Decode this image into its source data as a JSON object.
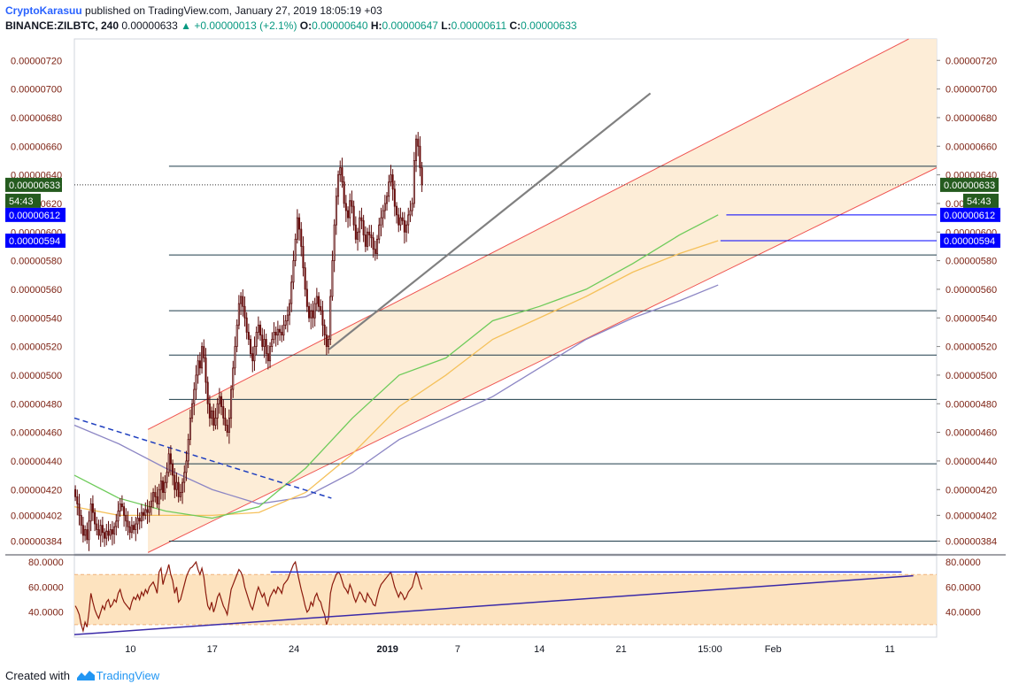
{
  "header": {
    "author": "CryptoKarasuu",
    "published": "published on TradingView.com, January 27, 2019 18:05:19 +03",
    "symbol": "BINANCE:ZILBTC, 240",
    "last": "0.00000633",
    "change": "+0.00000013 (+2.1%)",
    "o_label": "O:",
    "o": "0.00000640",
    "h_label": "H:",
    "h": "0.00000647",
    "l_label": "L:",
    "l": "0.00000611",
    "c_label": "C:",
    "c": "0.00000633"
  },
  "footer": {
    "created": "Created with",
    "brand": "TradingView"
  },
  "colors": {
    "up": "#26a69a",
    "down": "#8b0d0d",
    "channel_fill": "#fdebd3",
    "channel_line": "#ef5350",
    "ma_fast": "#6ecb5a",
    "ma_mid": "#f5c15b",
    "ma_slow": "#8c86c4",
    "hline": "#1d3b4a",
    "rsi_line": "#8b1a0d",
    "rsi_band": "#fde3bf",
    "blue_label": "#0000ff",
    "green_label": "#255b1f"
  },
  "chart_data": {
    "type": "candlestick",
    "price_range": [
      3.75e-06,
      7.35e-06
    ],
    "price_ticks": [
      "0.00000720",
      "0.00000700",
      "0.00000680",
      "0.00000660",
      "0.00000640",
      "0.00000620",
      "0.00000600",
      "0.00000580",
      "0.00000560",
      "0.00000540",
      "0.00000520",
      "0.00000500",
      "0.00000480",
      "0.00000460",
      "0.00000440",
      "0.00000420",
      "0.00000402",
      "0.00000384"
    ],
    "x_ticks": [
      {
        "label": "10",
        "day": 10
      },
      {
        "label": "17",
        "day": 17
      },
      {
        "label": "24",
        "day": 24
      },
      {
        "label": "2019",
        "day": 32,
        "bold": true
      },
      {
        "label": "7",
        "day": 38
      },
      {
        "label": "14",
        "day": 45
      },
      {
        "label": "21",
        "day": 52
      },
      {
        "label": "15:00",
        "day": 59.6
      },
      {
        "label": "Feb",
        "day": 65
      },
      {
        "label": "11",
        "day": 75
      }
    ],
    "x_range": [
      5.2,
      79
    ],
    "candles_per_day": 6,
    "start_day": 5.2,
    "closes": [
      415,
      410,
      402,
      395,
      388,
      392,
      385,
      398,
      410,
      404,
      396,
      392,
      388,
      395,
      390,
      386,
      391,
      388,
      392,
      389,
      394,
      398,
      405,
      410,
      408,
      402,
      398,
      394,
      390,
      395,
      392,
      396,
      400,
      398,
      404,
      402,
      406,
      404,
      408,
      412,
      418,
      415,
      410,
      420,
      426,
      418,
      425,
      432,
      445,
      438,
      430,
      420,
      425,
      415,
      418,
      425,
      432,
      440,
      455,
      470,
      480,
      490,
      500,
      510,
      505,
      520,
      512,
      495,
      480,
      470,
      475,
      465,
      470,
      480,
      485,
      478,
      470,
      465,
      460,
      470,
      490,
      505,
      520,
      535,
      550,
      555,
      548,
      540,
      530,
      525,
      515,
      510,
      520,
      530,
      535,
      528,
      520,
      525,
      515,
      510,
      520,
      525,
      530,
      528,
      532,
      530,
      528,
      535,
      538,
      542,
      550,
      565,
      580,
      595,
      610,
      602,
      590,
      575,
      560,
      548,
      540,
      545,
      540,
      550,
      555,
      548,
      545,
      535,
      528,
      520,
      525,
      555,
      580,
      605,
      625,
      640,
      645,
      635,
      620,
      615,
      610,
      622,
      618,
      605,
      595,
      600,
      610,
      608,
      598,
      590,
      600,
      598,
      596,
      588,
      585,
      595,
      605,
      610,
      615,
      620,
      625,
      635,
      640,
      630,
      618,
      612,
      605,
      610,
      608,
      600,
      605,
      612,
      615,
      620,
      650,
      665,
      660,
      645,
      633
    ],
    "open_first": 420,
    "horizontal_levels": [
      646,
      584,
      545,
      514,
      483,
      438,
      384
    ],
    "current_price": "0.00000633",
    "countdown": "54:43",
    "blue_levels": [
      {
        "price": 612,
        "label": "0.00000612"
      },
      {
        "price": 594,
        "label": "0.00000594"
      }
    ],
    "channel": {
      "lower_start": [
        11.5,
        376
      ],
      "lower_end": [
        79,
        645
      ],
      "upper_start": [
        11.5,
        462
      ],
      "upper_end": [
        79,
        745
      ],
      "fill_end_day": 79
    },
    "trend_lines": [
      {
        "name": "upper-wedge-line",
        "from": [
          27,
          518
        ],
        "to": [
          54.5,
          697
        ]
      },
      {
        "name": "descending-dashed-line",
        "from": [
          5.2,
          470
        ],
        "to": [
          27.2,
          414
        ]
      }
    ],
    "moving_averages": {
      "fast": [
        [
          5.2,
          430
        ],
        [
          9,
          414
        ],
        [
          13,
          405
        ],
        [
          17,
          400
        ],
        [
          21,
          408
        ],
        [
          25,
          435
        ],
        [
          29,
          470
        ],
        [
          33,
          500
        ],
        [
          37,
          512
        ],
        [
          41,
          538
        ],
        [
          45,
          548
        ],
        [
          49,
          560
        ],
        [
          53,
          578
        ],
        [
          57,
          598
        ],
        [
          60.3,
          612
        ]
      ],
      "mid": [
        [
          5.2,
          408
        ],
        [
          9,
          402
        ],
        [
          13,
          402
        ],
        [
          17,
          402
        ],
        [
          21,
          404
        ],
        [
          25,
          418
        ],
        [
          29,
          445
        ],
        [
          33,
          478
        ],
        [
          37,
          500
        ],
        [
          41,
          525
        ],
        [
          45,
          540
        ],
        [
          49,
          555
        ],
        [
          53,
          572
        ],
        [
          57,
          585
        ],
        [
          60.3,
          594
        ]
      ],
      "slow": [
        [
          5.2,
          465
        ],
        [
          9,
          452
        ],
        [
          13,
          435
        ],
        [
          17,
          420
        ],
        [
          21,
          410
        ],
        [
          25,
          415
        ],
        [
          29,
          432
        ],
        [
          33,
          455
        ],
        [
          37,
          470
        ],
        [
          41,
          485
        ],
        [
          45,
          505
        ],
        [
          49,
          525
        ],
        [
          53,
          540
        ],
        [
          57,
          552
        ],
        [
          60.3,
          563
        ]
      ]
    },
    "rsi": {
      "range": [
        20,
        85
      ],
      "ticks": [
        "80.0000",
        "60.0000",
        "40.0000"
      ],
      "tick_values": [
        80,
        60,
        40
      ],
      "band": [
        30,
        70
      ],
      "values": [
        45,
        42,
        38,
        30,
        25,
        32,
        28,
        40,
        55,
        48,
        42,
        38,
        35,
        40,
        45,
        42,
        48,
        50,
        44,
        46,
        50,
        48,
        55,
        58,
        52,
        48,
        46,
        44,
        42,
        48,
        52,
        50,
        54,
        50,
        56,
        53,
        58,
        55,
        60,
        62,
        64,
        60,
        55,
        72,
        75,
        62,
        68,
        72,
        78,
        70,
        65,
        55,
        60,
        48,
        50,
        56,
        62,
        68,
        72,
        75,
        76,
        78,
        80,
        74,
        70,
        75,
        68,
        55,
        45,
        42,
        48,
        40,
        45,
        52,
        55,
        50,
        45,
        42,
        38,
        48,
        58,
        62,
        66,
        70,
        74,
        72,
        68,
        60,
        55,
        50,
        45,
        42,
        48,
        55,
        60,
        56,
        52,
        55,
        48,
        45,
        52,
        55,
        58,
        55,
        60,
        58,
        55,
        62,
        64,
        66,
        70,
        74,
        78,
        80,
        72,
        65,
        58,
        52,
        45,
        40,
        42,
        48,
        45,
        52,
        55,
        50,
        48,
        42,
        38,
        30,
        35,
        55,
        62,
        66,
        70,
        72,
        70,
        65,
        60,
        58,
        55,
        62,
        58,
        52,
        48,
        52,
        56,
        54,
        50,
        48,
        55,
        52,
        50,
        46,
        45,
        52,
        58,
        62,
        64,
        66,
        68,
        70,
        72,
        66,
        60,
        56,
        52,
        56,
        54,
        50,
        52,
        56,
        58,
        60,
        66,
        72,
        68,
        62,
        58
      ],
      "resistance": {
        "from": [
          22,
          72
        ],
        "to": [
          76,
          72
        ]
      },
      "support": {
        "from": [
          5.2,
          22
        ],
        "to": [
          77,
          69
        ]
      }
    }
  }
}
